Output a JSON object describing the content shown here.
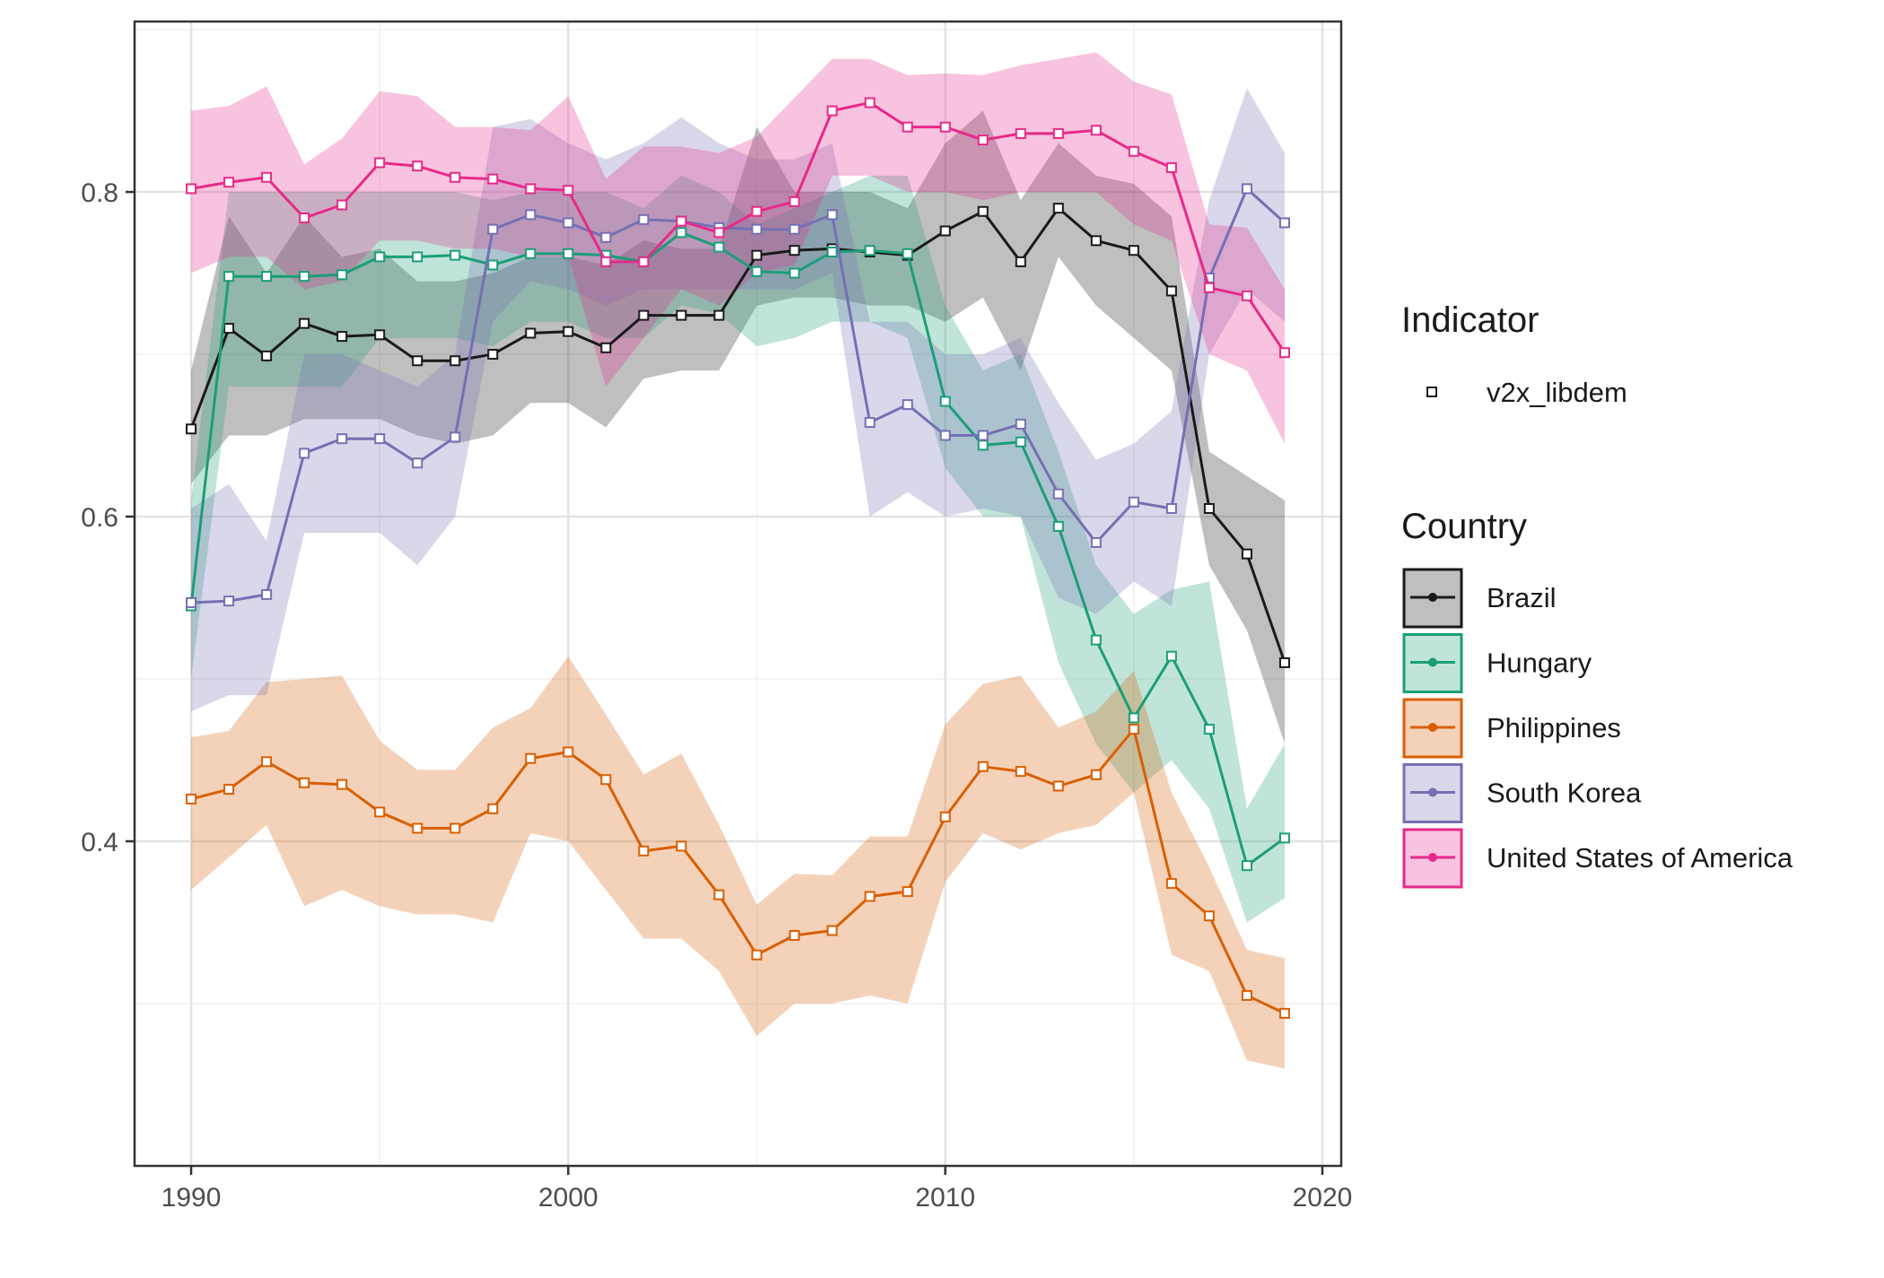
{
  "chart_data": {
    "type": "line",
    "title": "",
    "xlabel": "",
    "ylabel": "",
    "xlim": [
      1988.5,
      2020.5
    ],
    "ylim": [
      0.2,
      0.905
    ],
    "x_ticks": [
      1990,
      2000,
      2010,
      2020
    ],
    "y_ticks": [
      0.4,
      0.6,
      0.8
    ],
    "grid": true,
    "legend_position": "right",
    "legend": {
      "indicator_title": "Indicator",
      "indicator_entries": [
        "v2x_libdem"
      ],
      "country_title": "Country",
      "country_entries": [
        "Brazil",
        "Hungary",
        "Philippines",
        "South Korea",
        "United States of America"
      ]
    },
    "x": [
      1990,
      1991,
      1992,
      1993,
      1994,
      1995,
      1996,
      1997,
      1998,
      1999,
      2000,
      2001,
      2002,
      2003,
      2004,
      2005,
      2006,
      2007,
      2008,
      2009,
      2010,
      2011,
      2012,
      2013,
      2014,
      2015,
      2016,
      2017,
      2018,
      2019
    ],
    "series": [
      {
        "name": "Brazil",
        "color": "#1a1a1a",
        "values": [
          0.654,
          0.716,
          0.699,
          0.719,
          0.711,
          0.712,
          0.696,
          0.696,
          0.7,
          0.713,
          0.714,
          0.704,
          0.724,
          0.724,
          0.724,
          0.761,
          0.764,
          0.765,
          0.763,
          0.761,
          0.776,
          0.788,
          0.757,
          0.79,
          0.77,
          0.764,
          0.739,
          0.605,
          0.577,
          0.51
        ],
        "lower": [
          0.62,
          0.65,
          0.65,
          0.66,
          0.66,
          0.66,
          0.65,
          0.645,
          0.65,
          0.67,
          0.67,
          0.655,
          0.685,
          0.69,
          0.69,
          0.73,
          0.735,
          0.735,
          0.73,
          0.73,
          0.72,
          0.735,
          0.69,
          0.76,
          0.73,
          0.71,
          0.69,
          0.57,
          0.53,
          0.46
        ],
        "upper": [
          0.69,
          0.785,
          0.75,
          0.785,
          0.76,
          0.765,
          0.745,
          0.745,
          0.75,
          0.76,
          0.76,
          0.755,
          0.77,
          0.765,
          0.765,
          0.84,
          0.8,
          0.8,
          0.8,
          0.79,
          0.83,
          0.85,
          0.795,
          0.83,
          0.81,
          0.805,
          0.785,
          0.64,
          0.625,
          0.61
        ]
      },
      {
        "name": "Hungary",
        "color": "#1b9e77",
        "values": [
          0.545,
          0.748,
          0.748,
          0.748,
          0.749,
          0.76,
          0.76,
          0.761,
          0.755,
          0.762,
          0.762,
          0.761,
          0.757,
          0.775,
          0.766,
          0.751,
          0.75,
          0.763,
          0.764,
          0.762,
          0.671,
          0.644,
          0.646,
          0.594,
          0.524,
          0.476,
          0.514,
          0.469,
          0.385,
          0.402
        ],
        "lower": [
          0.5,
          0.68,
          0.68,
          0.68,
          0.68,
          0.71,
          0.71,
          0.71,
          0.705,
          0.72,
          0.72,
          0.71,
          0.71,
          0.73,
          0.725,
          0.705,
          0.71,
          0.72,
          0.72,
          0.71,
          0.63,
          0.6,
          0.6,
          0.51,
          0.46,
          0.43,
          0.45,
          0.42,
          0.35,
          0.365
        ],
        "upper": [
          0.61,
          0.8,
          0.8,
          0.8,
          0.8,
          0.8,
          0.8,
          0.8,
          0.795,
          0.8,
          0.8,
          0.8,
          0.79,
          0.81,
          0.8,
          0.78,
          0.79,
          0.8,
          0.81,
          0.81,
          0.73,
          0.69,
          0.7,
          0.64,
          0.57,
          0.54,
          0.555,
          0.56,
          0.42,
          0.46
        ]
      },
      {
        "name": "Philippines",
        "color": "#d95f02",
        "values": [
          0.426,
          0.432,
          0.449,
          0.436,
          0.435,
          0.418,
          0.408,
          0.408,
          0.42,
          0.451,
          0.455,
          0.438,
          0.394,
          0.397,
          0.367,
          0.33,
          0.342,
          0.345,
          0.366,
          0.369,
          0.415,
          0.446,
          0.443,
          0.434,
          0.441,
          0.469,
          0.374,
          0.354,
          0.305,
          0.294
        ],
        "lower": [
          0.37,
          0.39,
          0.41,
          0.36,
          0.37,
          0.36,
          0.355,
          0.355,
          0.35,
          0.405,
          0.4,
          0.37,
          0.34,
          0.34,
          0.32,
          0.28,
          0.3,
          0.3,
          0.305,
          0.3,
          0.375,
          0.405,
          0.395,
          0.405,
          0.41,
          0.43,
          0.33,
          0.32,
          0.265,
          0.26
        ],
        "upper": [
          0.464,
          0.468,
          0.498,
          0.5,
          0.502,
          0.462,
          0.444,
          0.444,
          0.47,
          0.482,
          0.514,
          0.478,
          0.441,
          0.454,
          0.41,
          0.361,
          0.38,
          0.379,
          0.403,
          0.403,
          0.472,
          0.497,
          0.502,
          0.47,
          0.48,
          0.505,
          0.43,
          0.384,
          0.333,
          0.328
        ]
      },
      {
        "name": "South Korea",
        "color": "#7570b3",
        "values": [
          0.547,
          0.548,
          0.552,
          0.639,
          0.648,
          0.648,
          0.633,
          0.649,
          0.777,
          0.786,
          0.781,
          0.772,
          0.783,
          0.782,
          0.778,
          0.777,
          0.777,
          0.786,
          0.658,
          0.669,
          0.65,
          0.65,
          0.657,
          0.614,
          0.584,
          0.609,
          0.605,
          0.747,
          0.802,
          0.781
        ],
        "lower": [
          0.48,
          0.49,
          0.49,
          0.59,
          0.59,
          0.59,
          0.57,
          0.6,
          0.72,
          0.745,
          0.74,
          0.73,
          0.74,
          0.74,
          0.74,
          0.74,
          0.74,
          0.75,
          0.6,
          0.615,
          0.6,
          0.605,
          0.6,
          0.55,
          0.54,
          0.56,
          0.545,
          0.7,
          0.74,
          0.72
        ],
        "upper": [
          0.605,
          0.62,
          0.585,
          0.7,
          0.7,
          0.69,
          0.68,
          0.7,
          0.84,
          0.845,
          0.83,
          0.82,
          0.83,
          0.846,
          0.83,
          0.82,
          0.82,
          0.83,
          0.72,
          0.72,
          0.7,
          0.7,
          0.71,
          0.67,
          0.635,
          0.645,
          0.665,
          0.795,
          0.864,
          0.824
        ]
      },
      {
        "name": "United States of America",
        "color": "#e7298a",
        "values": [
          0.802,
          0.806,
          0.809,
          0.784,
          0.792,
          0.818,
          0.816,
          0.809,
          0.808,
          0.802,
          0.801,
          0.757,
          0.757,
          0.782,
          0.775,
          0.788,
          0.794,
          0.85,
          0.855,
          0.84,
          0.84,
          0.832,
          0.836,
          0.836,
          0.838,
          0.825,
          0.815,
          0.741,
          0.736,
          0.701
        ],
        "lower": [
          0.75,
          0.76,
          0.76,
          0.74,
          0.745,
          0.77,
          0.77,
          0.765,
          0.765,
          0.76,
          0.76,
          0.68,
          0.71,
          0.74,
          0.73,
          0.75,
          0.755,
          0.81,
          0.81,
          0.8,
          0.8,
          0.795,
          0.8,
          0.8,
          0.8,
          0.78,
          0.77,
          0.7,
          0.69,
          0.645
        ],
        "upper": [
          0.85,
          0.853,
          0.865,
          0.817,
          0.833,
          0.862,
          0.859,
          0.84,
          0.84,
          0.838,
          0.859,
          0.808,
          0.828,
          0.828,
          0.824,
          0.834,
          0.858,
          0.882,
          0.882,
          0.872,
          0.873,
          0.872,
          0.878,
          0.882,
          0.886,
          0.868,
          0.86,
          0.78,
          0.778,
          0.74
        ]
      }
    ]
  }
}
